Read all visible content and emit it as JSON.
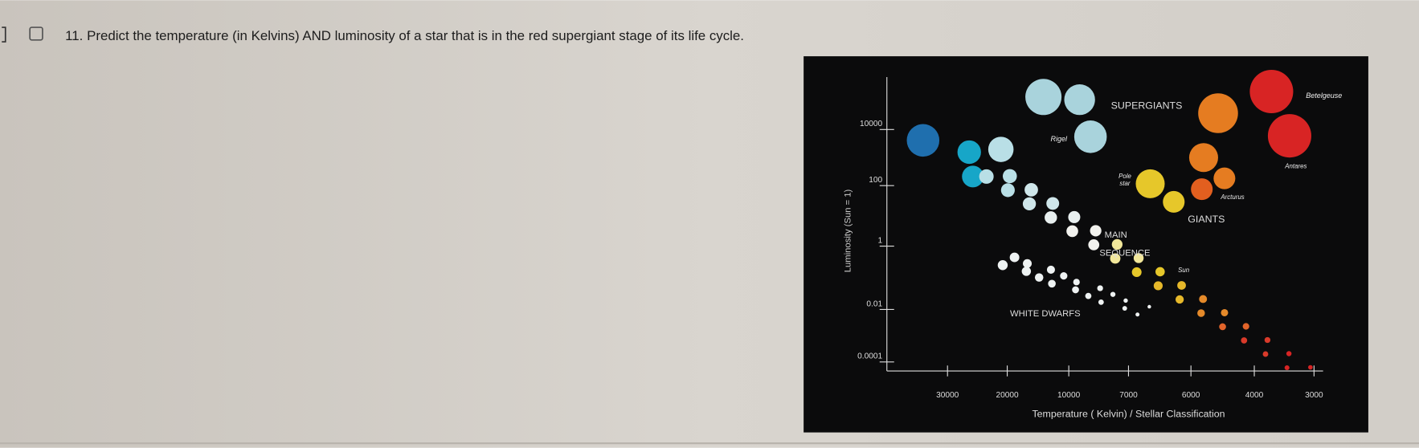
{
  "question": {
    "number": "11.",
    "text": "Predict the temperature (in Kelvins) AND luminosity of a star that is in the red supergiant stage of its life cycle."
  },
  "diagram": {
    "y_axis_label": "Luminosity (Sun = 1)",
    "y_ticks": [
      "10000",
      "100",
      "1",
      "0.01",
      "0.0001"
    ],
    "x_ticks": [
      "30000",
      "20000",
      "10000",
      "7000",
      "6000",
      "4000",
      "3000"
    ],
    "x_axis_label": "Temperature ( Kelvin) / Stellar Classification",
    "regions": {
      "supergiants": "SUPERGIANTS",
      "giants": "GIANTS",
      "main_sequence": [
        "MAIN",
        "SEQUENCE"
      ],
      "white_dwarfs": "WHITE DWARFS"
    },
    "stars": {
      "betelgeuse": "Betelgeuse",
      "rigel": "Rigel",
      "antares": "Antares",
      "pole_star": [
        "Pole",
        "star"
      ],
      "arcturus": "Arcturus",
      "sun": "Sun"
    }
  }
}
